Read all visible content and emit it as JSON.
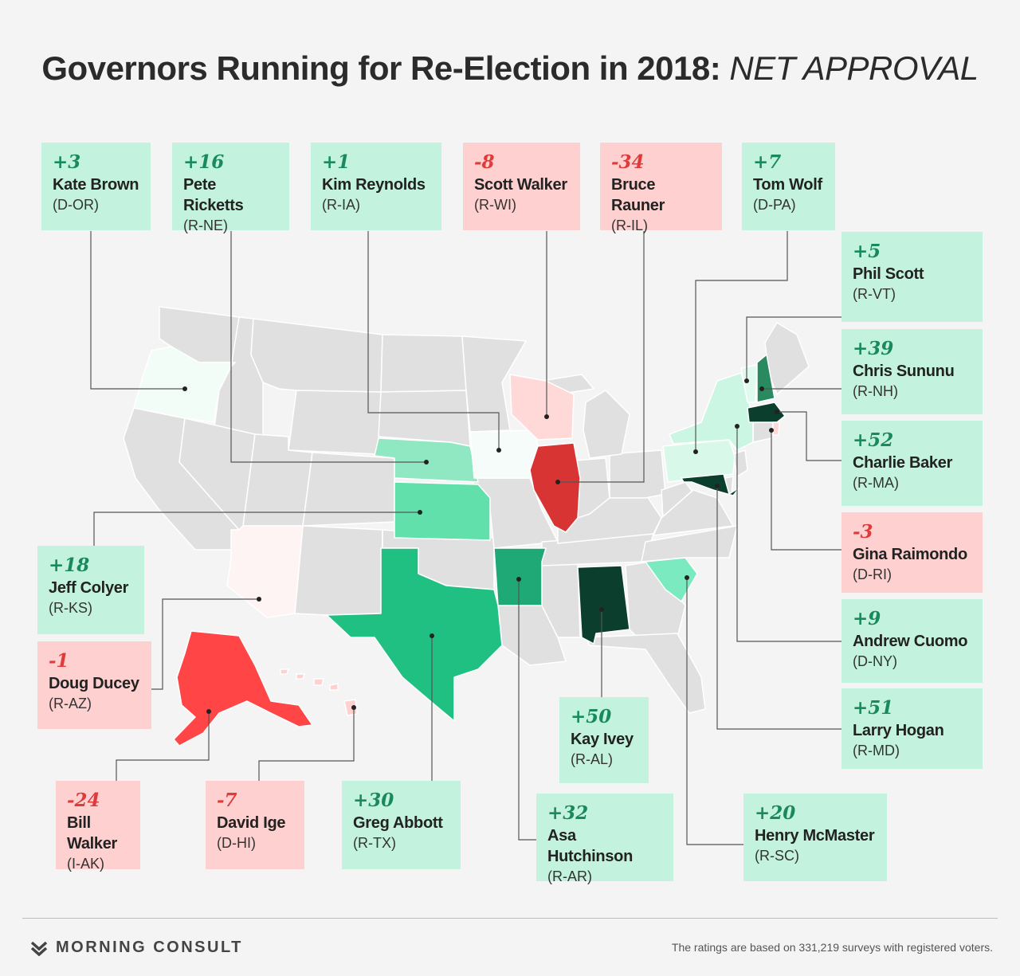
{
  "title": {
    "main": "Governors Running for Re-Election in 2018:",
    "highlight": "NET APPROVAL"
  },
  "colors": {
    "base_state": "#e0e0e0",
    "border": "#ffffff",
    "leader": "#555555",
    "pos_box": "#c3f3de",
    "neg_box": "#ffd0d0"
  },
  "governors": [
    {
      "id": "or",
      "value": "+3",
      "name": "Kate Brown",
      "party": "(D-OR)"
    },
    {
      "id": "ne",
      "value": "+16",
      "name": "Pete Ricketts",
      "party": "(R-NE)"
    },
    {
      "id": "ia",
      "value": "+1",
      "name": "Kim Reynolds",
      "party": "(R-IA)"
    },
    {
      "id": "wi",
      "value": "-8",
      "name": "Scott Walker",
      "party": "(R-WI)"
    },
    {
      "id": "il",
      "value": "-34",
      "name": "Bruce Rauner",
      "party": "(R-IL)"
    },
    {
      "id": "pa",
      "value": "+7",
      "name": "Tom Wolf",
      "party": "(D-PA)"
    },
    {
      "id": "vt",
      "value": "+5",
      "name": "Phil Scott",
      "party": "(R-VT)"
    },
    {
      "id": "nh",
      "value": "+39",
      "name": "Chris Sununu",
      "party": "(R-NH)"
    },
    {
      "id": "ma",
      "value": "+52",
      "name": "Charlie Baker",
      "party": "(R-MA)"
    },
    {
      "id": "ri",
      "value": "-3",
      "name": "Gina Raimondo",
      "party": "(D-RI)"
    },
    {
      "id": "ny",
      "value": "+9",
      "name": "Andrew Cuomo",
      "party": "(D-NY)"
    },
    {
      "id": "md",
      "value": "+51",
      "name": "Larry Hogan",
      "party": "(R-MD)"
    },
    {
      "id": "ks",
      "value": "+18",
      "name": "Jeff Colyer",
      "party": "(R-KS)"
    },
    {
      "id": "az",
      "value": "-1",
      "name": "Doug Ducey",
      "party": "(R-AZ)"
    },
    {
      "id": "ak",
      "value": "-24",
      "name": "Bill Walker",
      "party": "(I-AK)"
    },
    {
      "id": "hi",
      "value": "-7",
      "name": "David Ige",
      "party": "(D-HI)"
    },
    {
      "id": "tx",
      "value": "+30",
      "name": "Greg Abbott",
      "party": "(R-TX)"
    },
    {
      "id": "ar",
      "value": "+32",
      "name": "Asa Hutchinson",
      "party": "(R-AR)"
    },
    {
      "id": "al",
      "value": "+50",
      "name": "Kay Ivey",
      "party": "(R-AL)"
    },
    {
      "id": "sc",
      "value": "+20",
      "name": "Henry McMaster",
      "party": "(R-SC)"
    }
  ],
  "footer": {
    "brand": "MORNING CONSULT",
    "logo_icon": "mc-chevron-icon",
    "note": "The ratings are based on 331,219 surveys with registered voters."
  }
}
